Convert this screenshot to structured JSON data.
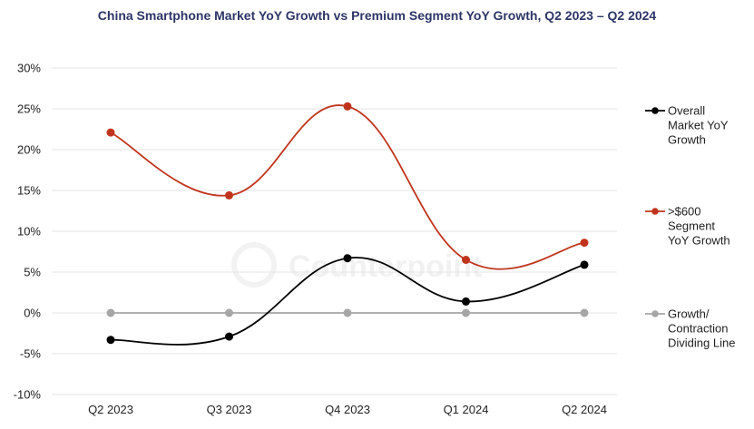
{
  "chart_data": {
    "type": "line",
    "title": "China Smartphone Market YoY Growth vs Premium Segment YoY Growth, Q2 2023 – Q2 2024",
    "categories": [
      "Q2 2023",
      "Q3 2023",
      "Q4 2023",
      "Q1 2024",
      "Q2 2024"
    ],
    "ylim": [
      -10,
      30
    ],
    "yticks": [
      "30%",
      "25%",
      "20%",
      "15%",
      "10%",
      "5%",
      "0%",
      "-5%",
      "-10%"
    ],
    "ytick_values": [
      30,
      25,
      20,
      15,
      10,
      5,
      0,
      -5,
      -10
    ],
    "grid": true,
    "legend_position": "right",
    "series": [
      {
        "name": "Overall Market YoY Growth",
        "legend_lines": [
          "Overall",
          "Market YoY",
          "Growth"
        ],
        "color": "#000000",
        "values": [
          -3.3,
          -2.9,
          6.7,
          1.4,
          5.9
        ]
      },
      {
        "name": ">$600 Segment YoY Growth",
        "legend_lines": [
          ">$600",
          "Segment",
          "YoY Growth"
        ],
        "color": "#c0341d",
        "values": [
          22.1,
          14.4,
          25.3,
          6.5,
          8.6
        ]
      },
      {
        "name": "Growth/ Contraction Dividing Line",
        "legend_lines": [
          "Growth/",
          "Contraction",
          "Dividing Line"
        ],
        "color": "#a6a6a6",
        "values": [
          0,
          0,
          0,
          0,
          0
        ]
      }
    ]
  },
  "watermark": "Counterpoint"
}
